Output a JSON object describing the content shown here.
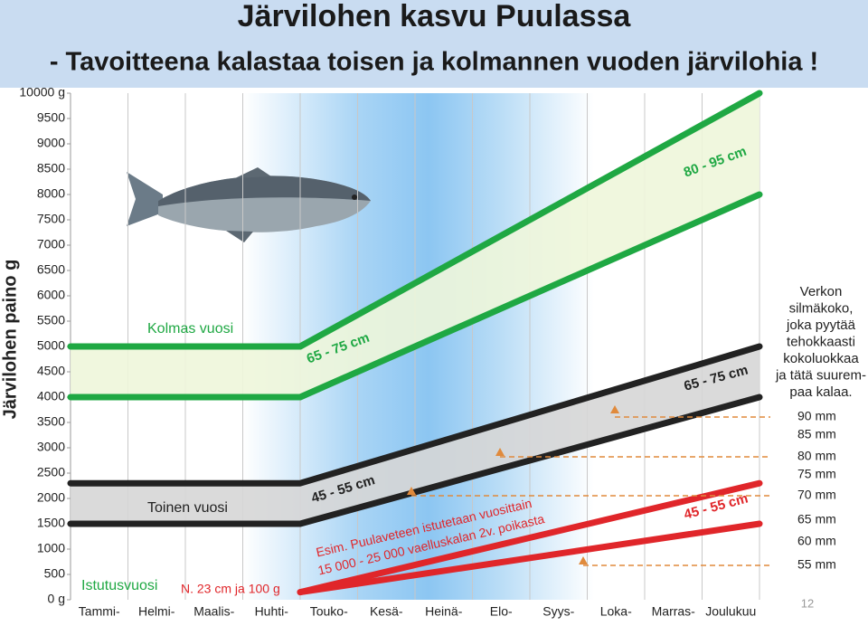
{
  "chart_data": {
    "type": "band",
    "title": "Järvilohen kasvu Puulassa",
    "subtitle": "- Tavoitteena kalastaa toisen ja kolmannen vuoden järvilohia !",
    "y_label": "Järvilohen paino g",
    "categories": [
      "Tammi-",
      "Helmi-",
      "Maalis-",
      "Huhti-",
      "Touko-",
      "Kesä-",
      "Heinä-",
      "Elo-",
      "Syys-",
      "Loka-",
      "Marras-",
      "Joulukuu"
    ],
    "xlim": [
      0,
      12
    ],
    "ylim": [
      0,
      10000
    ],
    "yticks": [
      {
        "value": 0,
        "label": "0 g"
      },
      500,
      1000,
      1500,
      2000,
      2500,
      3000,
      3500,
      4000,
      4500,
      5000,
      5500,
      6000,
      6500,
      7000,
      7500,
      8000,
      8500,
      9000,
      9500,
      {
        "value": 10000,
        "label": "10000 g"
      }
    ],
    "series": [
      {
        "color": "#1fa843",
        "fill": "#eef6da",
        "x": [
          0,
          4,
          12
        ],
        "upper": [
          5000,
          5000,
          10000
        ],
        "lower": [
          4000,
          4000,
          8000
        ]
      },
      {
        "color": "#222222",
        "fill": "#d6d6d6",
        "x": [
          0,
          4,
          12
        ],
        "upper": [
          2300,
          2300,
          5000
        ],
        "lower": [
          1500,
          1500,
          4000
        ]
      },
      {
        "color": "#e0262a",
        "x": [
          4,
          12
        ],
        "upper": [
          150,
          2300
        ],
        "lower": [
          150,
          1500
        ]
      }
    ],
    "annotations": [
      "Kolmas vuosi",
      "65 - 75 cm",
      "80 - 95 cm",
      "Toinen vuosi",
      "45 - 55 cm",
      "65 - 75 cm",
      "45 - 55 cm",
      "Esim. Puulaveteen istutetaan vuosittain",
      "15 000 - 25 000 vaelluskalan 2v. poikasta",
      "Istutusvuosi",
      "N. 23 cm ja 100 g"
    ],
    "note_lines": [
      "Verkon",
      "silmäkoko,",
      "joka pyytää",
      "tehokkaasti",
      "kokoluokkaa",
      "ja tätä suurem-",
      "paa kalaa."
    ],
    "mesh_sizes": [
      "90 mm",
      "85 mm",
      "80 mm",
      "75 mm",
      "70 mm",
      "65 mm",
      "60 mm",
      "55 mm"
    ],
    "page_number": "12"
  }
}
